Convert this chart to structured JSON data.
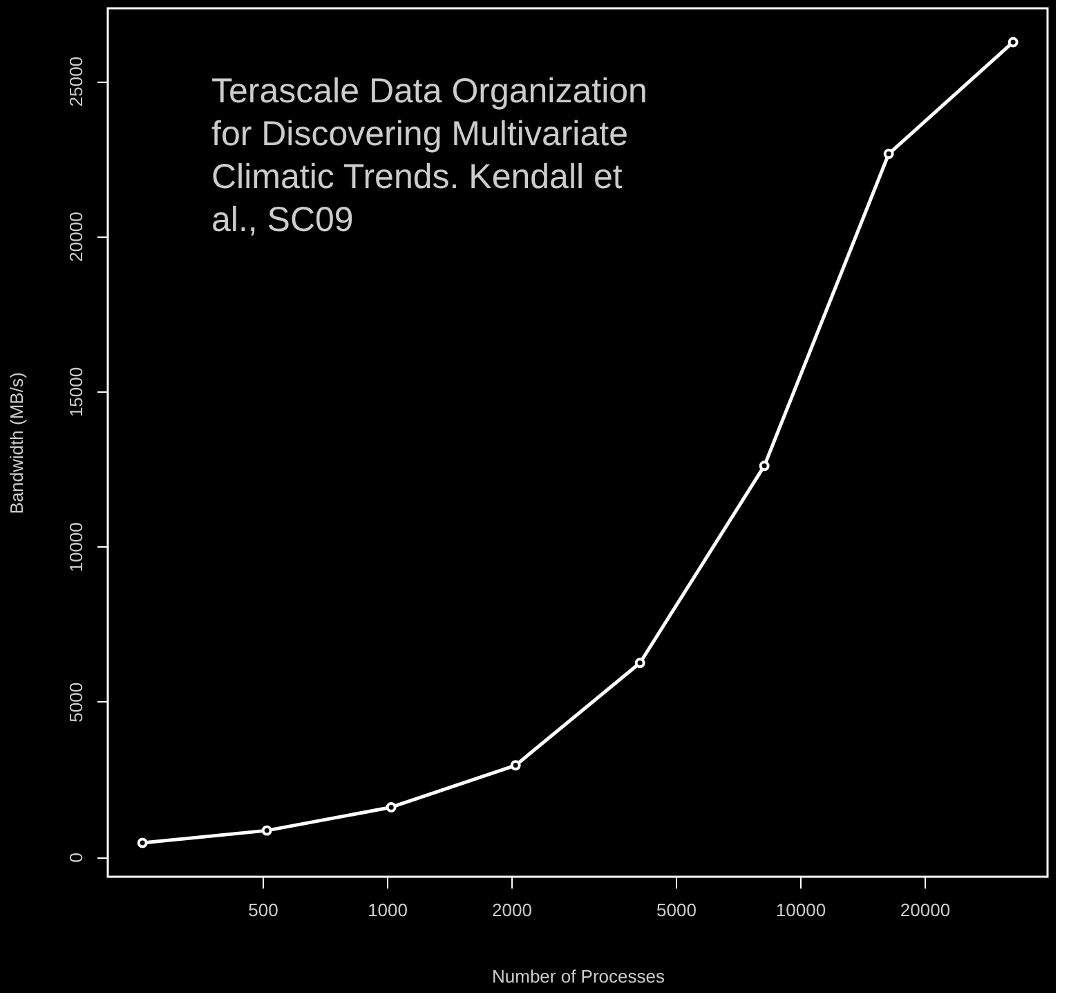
{
  "chart_data": {
    "type": "line",
    "xlabel": "Number of Processes",
    "ylabel": "Bandwidth (MB/s)",
    "x": [
      256,
      512,
      1024,
      2048,
      4096,
      8192,
      16384,
      32768
    ],
    "series": [
      {
        "color": "#ffffff",
        "values": [
          450,
          850,
          1600,
          2950,
          6250,
          12600,
          22650,
          26250
        ]
      }
    ],
    "log": "x",
    "xlim": [
      211,
      39700
    ],
    "ylim": [
      -640,
      27340
    ],
    "xticks": [
      500,
      1000,
      2000,
      5000,
      10000,
      20000
    ],
    "yticks": [
      0,
      5000,
      10000,
      15000,
      20000,
      25000
    ],
    "marker": "circle",
    "line_style": "solid",
    "grid": false,
    "annotations": [
      "Terascale Data Organization\n for Discovering Multivariate\n Climatic Trends. Kendall et\n al., SC09"
    ]
  }
}
